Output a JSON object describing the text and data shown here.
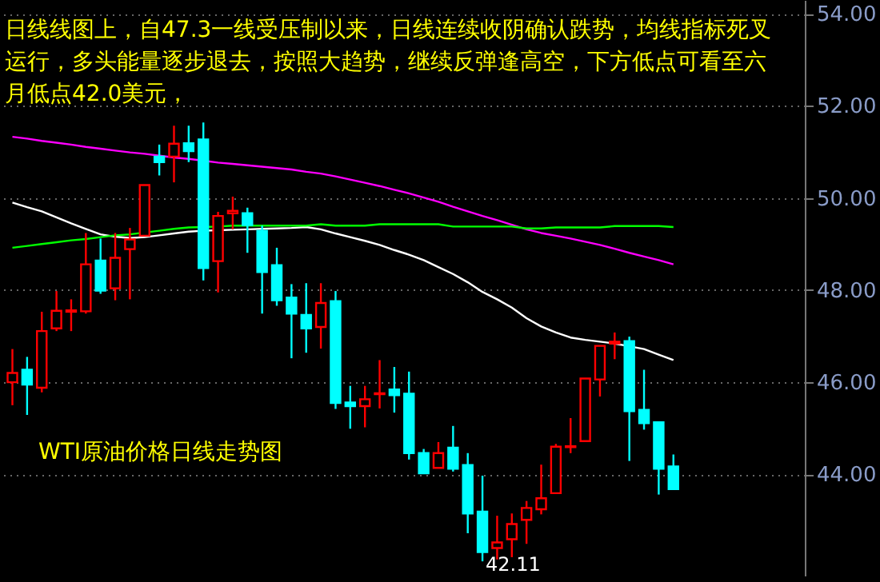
{
  "chart_data": {
    "type": "candlestick",
    "annotations": [
      "日线线图上，自47.3一线受压制以来，日线连续收阴确认跌势，均线指标死叉运行，多头能量逐步退去，按照大趋势，继续反弹逢高空，下方低点可看至六月低点42.0美元，",
      "WTI原油价格日线走势图",
      "42.11"
    ],
    "categories": [
      null,
      null,
      null,
      null,
      null,
      null,
      null,
      null,
      null,
      null,
      null,
      null,
      null,
      null,
      null,
      null,
      null,
      null,
      null,
      null,
      null,
      null,
      null,
      null,
      null,
      null,
      null,
      null,
      null,
      null,
      null,
      null,
      null,
      null,
      null,
      null,
      null,
      null,
      null,
      null,
      null,
      null,
      null,
      null,
      null,
      null
    ],
    "ohlc": [
      [
        46.0,
        46.72,
        45.5,
        46.2
      ],
      [
        46.27,
        46.55,
        45.29,
        45.95
      ],
      [
        45.88,
        47.53,
        45.78,
        47.11
      ],
      [
        47.17,
        47.98,
        47.11,
        47.55
      ],
      [
        47.53,
        47.8,
        47.11,
        47.56
      ],
      [
        47.54,
        49.24,
        47.49,
        48.56
      ],
      [
        48.64,
        49.12,
        47.92,
        47.99
      ],
      [
        48.04,
        49.24,
        47.78,
        48.7
      ],
      [
        48.89,
        49.35,
        47.8,
        49.1
      ],
      [
        49.18,
        50.28,
        49.18,
        50.28
      ],
      [
        50.9,
        51.16,
        50.49,
        50.78
      ],
      [
        50.9,
        51.57,
        50.34,
        51.18
      ],
      [
        51.19,
        51.57,
        50.78,
        51.02
      ],
      [
        51.27,
        51.64,
        48.21,
        48.48
      ],
      [
        48.63,
        49.7,
        47.95,
        49.61
      ],
      [
        49.67,
        50.03,
        49.32,
        49.72
      ],
      [
        49.67,
        49.79,
        48.81,
        49.41
      ],
      [
        49.29,
        49.4,
        47.49,
        48.39
      ],
      [
        48.54,
        48.92,
        47.66,
        47.78
      ],
      [
        47.84,
        48.13,
        46.52,
        47.49
      ],
      [
        47.46,
        48.15,
        46.64,
        47.17
      ],
      [
        47.2,
        48.15,
        46.73,
        47.72
      ],
      [
        47.76,
        47.98,
        45.42,
        45.55
      ],
      [
        45.56,
        45.92,
        44.99,
        45.48
      ],
      [
        45.48,
        45.92,
        45.02,
        45.63
      ],
      [
        45.74,
        46.48,
        45.43,
        45.76
      ],
      [
        45.84,
        46.33,
        45.34,
        45.72
      ],
      [
        45.75,
        46.23,
        44.32,
        44.46
      ],
      [
        44.46,
        44.55,
        44.02,
        44.02
      ],
      [
        44.14,
        44.7,
        44.14,
        44.46
      ],
      [
        44.58,
        45.05,
        44.06,
        44.12
      ],
      [
        44.2,
        44.46,
        42.72,
        43.15
      ],
      [
        43.19,
        43.97,
        42.11,
        42.31
      ],
      [
        42.4,
        43.1,
        42.15,
        42.52
      ],
      [
        42.59,
        43.15,
        42.2,
        42.92
      ],
      [
        43.01,
        43.42,
        42.49,
        43.27
      ],
      [
        43.24,
        44.21,
        43.13,
        43.48
      ],
      [
        43.59,
        44.66,
        43.59,
        44.6
      ],
      [
        44.59,
        45.22,
        44.46,
        44.61
      ],
      [
        44.72,
        46.08,
        44.7,
        46.08
      ],
      [
        46.06,
        46.79,
        45.69,
        46.79
      ],
      [
        46.84,
        47.08,
        46.5,
        46.88
      ],
      [
        46.89,
        46.99,
        44.29,
        45.37
      ],
      [
        45.4,
        46.27,
        44.97,
        45.11
      ],
      [
        45.13,
        45.13,
        43.56,
        44.12
      ],
      [
        44.17,
        44.43,
        43.68,
        43.68
      ]
    ],
    "colors": [
      "#ff0000",
      "#00ffff",
      "#ff0000",
      "#ff0000",
      "#ff0000",
      "#ff0000",
      "#00ffff",
      "#ff0000",
      "#ff0000",
      "#ff0000",
      "#00ffff",
      "#ff0000",
      "#00ffff",
      "#00ffff",
      "#ff0000",
      "#ff0000",
      "#00ffff",
      "#00ffff",
      "#00ffff",
      "#00ffff",
      "#00ffff",
      "#ff0000",
      "#00ffff",
      "#00ffff",
      "#ff0000",
      "#ff0000",
      "#00ffff",
      "#00ffff",
      "#00ffff",
      "#ff0000",
      "#00ffff",
      "#00ffff",
      "#00ffff",
      "#ff0000",
      "#ff0000",
      "#ff0000",
      "#ff0000",
      "#ff0000",
      "#ff0000",
      "#ff0000",
      "#ff0000",
      "#ff0000",
      "#00ffff",
      "#00ffff",
      "#00ffff",
      "#00ffff"
    ],
    "series": [
      {
        "type": "line",
        "color": "#ffffff",
        "values": [
          49.9,
          49.8,
          49.71,
          49.58,
          49.45,
          49.33,
          49.21,
          49.16,
          49.13,
          49.15,
          49.19,
          49.23,
          49.27,
          49.29,
          49.3,
          49.31,
          49.32,
          49.33,
          49.34,
          49.35,
          49.37,
          49.32,
          49.23,
          49.15,
          49.07,
          48.98,
          48.87,
          48.77,
          48.65,
          48.5,
          48.35,
          48.17,
          47.96,
          47.8,
          47.62,
          47.39,
          47.21,
          47.08,
          46.97,
          46.92,
          46.88,
          46.84,
          46.78,
          46.72,
          46.6,
          46.48
        ]
      },
      {
        "type": "line",
        "color": "#ff00ff",
        "values": [
          51.33,
          51.29,
          51.24,
          51.2,
          51.16,
          51.11,
          51.07,
          51.03,
          50.99,
          50.96,
          50.92,
          50.88,
          50.85,
          50.81,
          50.77,
          50.74,
          50.71,
          50.68,
          50.65,
          50.62,
          50.57,
          50.53,
          50.47,
          50.4,
          50.33,
          50.26,
          50.18,
          50.1,
          50.01,
          49.92,
          49.81,
          49.71,
          49.61,
          49.52,
          49.42,
          49.32,
          49.24,
          49.18,
          49.12,
          49.05,
          48.98,
          48.9,
          48.81,
          48.73,
          48.65,
          48.56
        ]
      },
      {
        "type": "line",
        "color": "#00ff00",
        "values": [
          48.92,
          48.96,
          49.0,
          49.04,
          49.08,
          49.11,
          49.15,
          49.19,
          49.21,
          49.25,
          49.29,
          49.33,
          49.36,
          49.37,
          49.38,
          49.4,
          49.4,
          49.4,
          49.4,
          49.4,
          49.4,
          49.43,
          49.4,
          49.4,
          49.4,
          49.43,
          49.43,
          49.43,
          49.43,
          49.43,
          49.38,
          49.38,
          49.38,
          49.38,
          49.38,
          49.34,
          49.34,
          49.36,
          49.36,
          49.36,
          49.36,
          49.39,
          49.39,
          49.39,
          49.39,
          49.37
        ]
      }
    ],
    "ylim": [
      41.8,
      54.3
    ],
    "yticks": [
      {
        "value": 44,
        "label": "44.00"
      },
      {
        "value": 46,
        "label": "46.00"
      },
      {
        "value": 48,
        "label": "48.00"
      },
      {
        "value": 50,
        "label": "50.00"
      },
      {
        "value": 52,
        "label": "52.00"
      },
      {
        "value": 54,
        "label": "54.00"
      }
    ],
    "grid": "y",
    "line_style": "solid",
    "marker": "none"
  }
}
